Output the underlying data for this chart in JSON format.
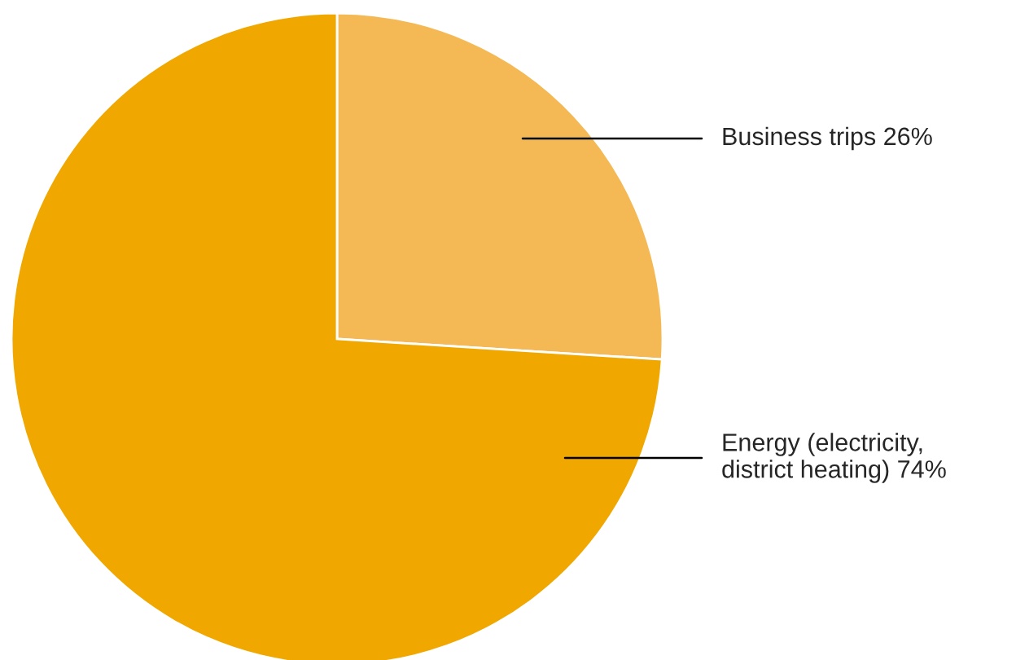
{
  "chart_data": {
    "type": "pie",
    "categories": [
      "Business trips",
      "Energy (electricity,\ndistrict heating)"
    ],
    "values": [
      26,
      74
    ],
    "value_labels": [
      "26%",
      "74%"
    ],
    "colors": [
      "#f4b955",
      "#f0a800"
    ]
  }
}
